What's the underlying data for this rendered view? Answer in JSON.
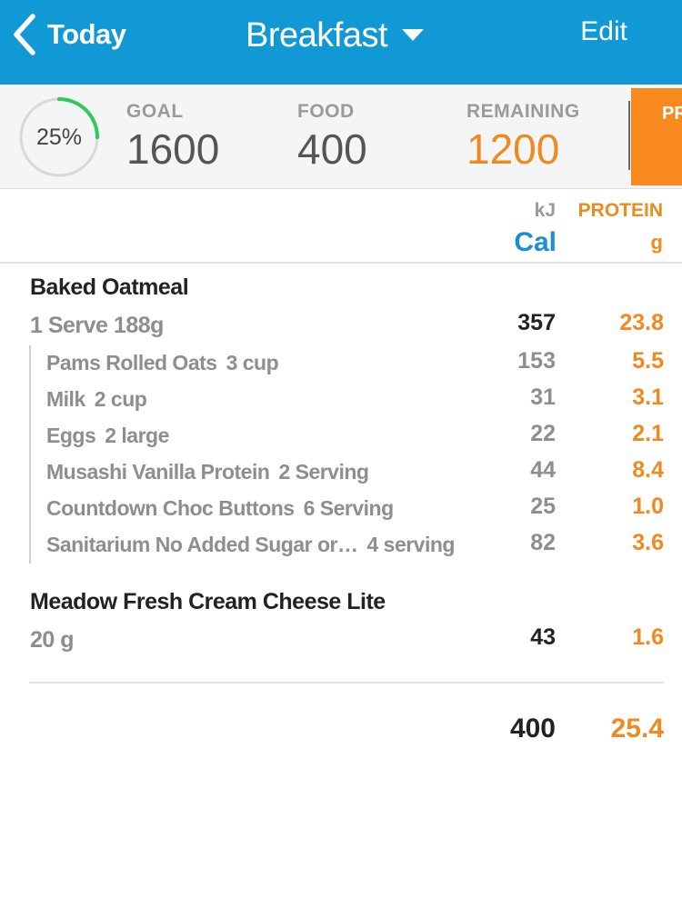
{
  "nav": {
    "back_label": "Today",
    "title": "Breakfast",
    "edit_label": "Edit"
  },
  "summary": {
    "progress_percent_label": "25%",
    "progress_fraction": 0.25,
    "goal_label": "GOAL",
    "goal_value": "1600",
    "food_label": "FOOD",
    "food_value": "400",
    "remaining_label": "REMAINING",
    "remaining_value": "1200",
    "tab_label": "PR"
  },
  "columns": {
    "energy_unit_top": "kJ",
    "energy_unit_main": "Cal",
    "nutrient_name": "PROTEIN",
    "nutrient_unit": "g"
  },
  "entries": [
    {
      "name": "Baked Oatmeal",
      "serving": "1 Serve 188g",
      "energy": "357",
      "protein": "23.8",
      "ingredients": [
        {
          "name": "Pams Rolled Oats",
          "qty": "3 cup",
          "energy": "153",
          "protein": "5.5"
        },
        {
          "name": "Milk",
          "qty": "2 cup",
          "energy": "31",
          "protein": "3.1"
        },
        {
          "name": "Eggs",
          "qty": "2 large",
          "energy": "22",
          "protein": "2.1"
        },
        {
          "name": "Musashi Vanilla Protein",
          "qty": "2 Serving",
          "energy": "44",
          "protein": "8.4"
        },
        {
          "name": "Countdown Choc Buttons",
          "qty": "6 Serving",
          "energy": "25",
          "protein": "1.0"
        },
        {
          "name": "Sanitarium No Added Sugar or…",
          "qty": "4 serving",
          "energy": "82",
          "protein": "3.6"
        }
      ]
    },
    {
      "name": "Meadow Fresh Cream Cheese Lite",
      "serving": "20 g",
      "energy": "43",
      "protein": "1.6",
      "ingredients": []
    }
  ],
  "totals": {
    "energy": "400",
    "protein": "25.4"
  },
  "colors": {
    "nav_bg": "#1199d6",
    "accent_orange": "#ee8a1e",
    "accent_blue": "#1a8fd1",
    "ring_progress": "#34c759",
    "ring_track": "#d9d9d9"
  }
}
